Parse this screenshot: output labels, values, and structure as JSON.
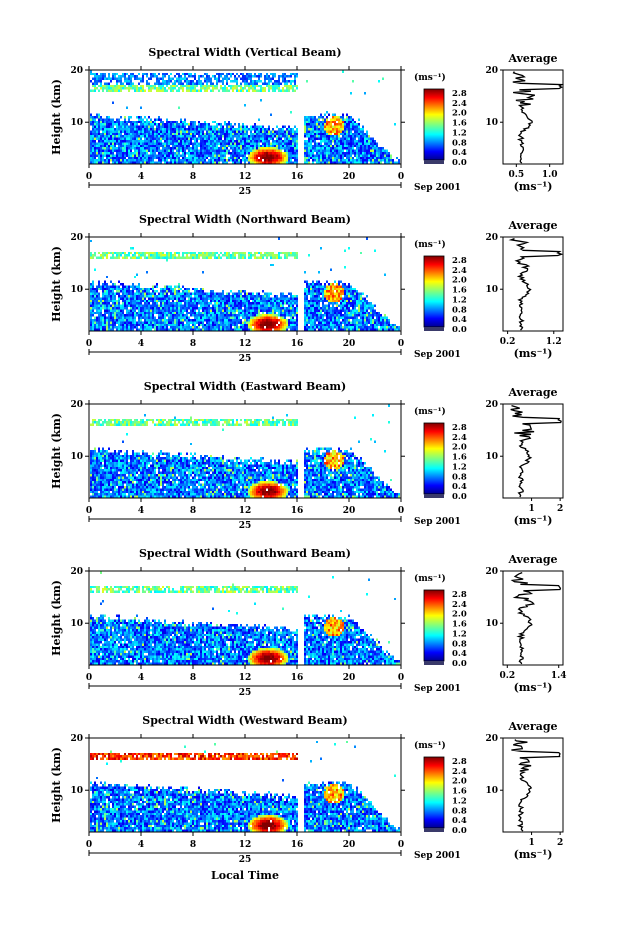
{
  "chart_data": [
    {
      "type": "heatmap",
      "title": "Spectral Width (Vertical Beam)",
      "ylabel": "Height (km)",
      "y_ticks": [
        "20",
        "10"
      ],
      "x_ticks": [
        "0",
        "4",
        "8",
        "12",
        "16",
        "20",
        "0"
      ],
      "xlim": [
        0,
        24
      ],
      "ylim": [
        2,
        20
      ],
      "date_marker": "25",
      "date_label": "Sep 2001",
      "colorbar": {
        "unit": "(ms⁻¹)",
        "ticks": [
          "2.8",
          "2.4",
          "2.0",
          "1.6",
          "1.2",
          "0.8",
          "0.4",
          "0.0"
        ]
      },
      "average": {
        "title": "Average",
        "x_ticks": [
          "0.5",
          "1.0"
        ],
        "xlim": [
          0.3,
          1.2
        ],
        "xlabel": "(ms⁻¹)",
        "y_ticks": [
          "20",
          "10"
        ]
      }
    },
    {
      "type": "heatmap",
      "title": "Spectral Width (Northward Beam)",
      "ylabel": "Height (km)",
      "y_ticks": [
        "20",
        "10"
      ],
      "x_ticks": [
        "0",
        "4",
        "8",
        "12",
        "16",
        "20",
        "0"
      ],
      "xlim": [
        0,
        24
      ],
      "ylim": [
        2,
        20
      ],
      "date_marker": "25",
      "date_label": "Sep 2001",
      "colorbar": {
        "unit": "(ms⁻¹)",
        "ticks": [
          "2.8",
          "2.4",
          "2.0",
          "1.6",
          "1.2",
          "0.8",
          "0.4",
          "0.0"
        ]
      },
      "average": {
        "title": "Average",
        "x_ticks": [
          "0.2",
          "1.2"
        ],
        "xlim": [
          0.1,
          1.4
        ],
        "xlabel": "(ms⁻¹)",
        "y_ticks": [
          "20",
          "10"
        ]
      }
    },
    {
      "type": "heatmap",
      "title": "Spectral Width (Eastward Beam)",
      "ylabel": "Height (km)",
      "y_ticks": [
        "20",
        "10"
      ],
      "x_ticks": [
        "0",
        "4",
        "8",
        "12",
        "16",
        "20",
        "0"
      ],
      "xlim": [
        0,
        24
      ],
      "ylim": [
        2,
        20
      ],
      "date_marker": "25",
      "date_label": "Sep 2001",
      "colorbar": {
        "unit": "(ms⁻¹)",
        "ticks": [
          "2.8",
          "2.4",
          "2.0",
          "1.6",
          "1.2",
          "0.8",
          "0.4",
          "0.0"
        ]
      },
      "average": {
        "title": "Average",
        "x_ticks": [
          "1",
          "2"
        ],
        "xlim": [
          0,
          2.1
        ],
        "xlabel": "(ms⁻¹)",
        "y_ticks": [
          "20",
          "10"
        ]
      }
    },
    {
      "type": "heatmap",
      "title": "Spectral Width (Southward Beam)",
      "ylabel": "Height (km)",
      "y_ticks": [
        "20",
        "10"
      ],
      "x_ticks": [
        "0",
        "4",
        "8",
        "12",
        "16",
        "20",
        "0"
      ],
      "xlim": [
        0,
        24
      ],
      "ylim": [
        2,
        20
      ],
      "date_marker": "25",
      "date_label": "Sep 2001",
      "colorbar": {
        "unit": "(ms⁻¹)",
        "ticks": [
          "2.8",
          "2.4",
          "2.0",
          "1.6",
          "1.2",
          "0.8",
          "0.4",
          "0.0"
        ]
      },
      "average": {
        "title": "Average",
        "x_ticks": [
          "0.2",
          "1.4"
        ],
        "xlim": [
          0.1,
          1.5
        ],
        "xlabel": "(ms⁻¹)",
        "y_ticks": [
          "20",
          "10"
        ]
      }
    },
    {
      "type": "heatmap",
      "title": "Spectral Width (Westward Beam)",
      "ylabel": "Height (km)",
      "y_ticks": [
        "20",
        "10"
      ],
      "x_ticks": [
        "0",
        "4",
        "8",
        "12",
        "16",
        "20",
        "0"
      ],
      "xlim": [
        0,
        24
      ],
      "ylim": [
        2,
        20
      ],
      "date_marker": "25",
      "date_label": "Sep 2001",
      "colorbar": {
        "unit": "(ms⁻¹)",
        "ticks": [
          "2.8",
          "2.4",
          "2.0",
          "1.6",
          "1.2",
          "0.8",
          "0.4",
          "0.0"
        ]
      },
      "average": {
        "title": "Average",
        "x_ticks": [
          "1",
          "2"
        ],
        "xlim": [
          0,
          2.1
        ],
        "xlabel": "(ms⁻¹)",
        "y_ticks": [
          "20",
          "10"
        ]
      }
    }
  ],
  "footer": {
    "xlabel": "Local Time"
  }
}
